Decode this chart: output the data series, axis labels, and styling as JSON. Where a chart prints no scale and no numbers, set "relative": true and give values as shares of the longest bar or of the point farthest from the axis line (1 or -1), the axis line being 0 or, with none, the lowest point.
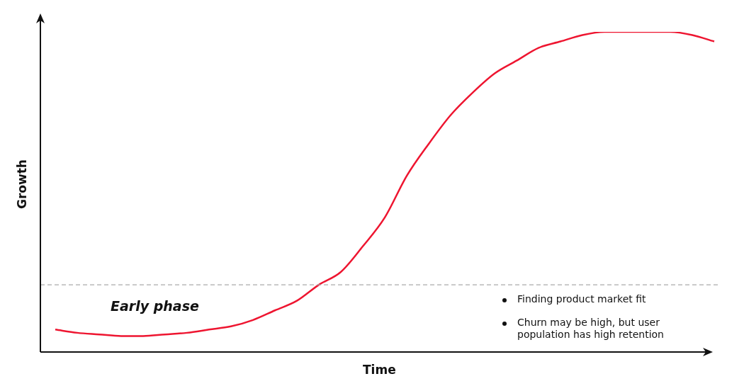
{
  "chart_data": {
    "type": "line",
    "relative": true,
    "xlabel": "Time",
    "ylabel": "Growth",
    "categories": [
      null,
      null,
      null,
      null,
      null,
      null,
      null,
      null,
      null,
      null,
      null,
      null,
      null,
      null,
      null,
      null,
      null,
      null,
      null,
      null,
      null,
      null,
      null,
      null,
      null,
      null,
      null,
      null,
      null,
      null,
      null
    ],
    "series": [
      {
        "color": "#ee1530",
        "values": [
          0.07,
          0.06,
          0.055,
          0.05,
          0.05,
          0.055,
          0.06,
          0.07,
          0.08,
          0.1,
          0.13,
          0.16,
          0.21,
          0.25,
          0.33,
          0.42,
          0.55,
          0.65,
          0.74,
          0.81,
          0.87,
          0.91,
          0.95,
          0.97,
          0.99,
          1.0,
          1.0,
          1.0,
          1.0,
          0.99,
          0.97
        ]
      }
    ],
    "ref_lines": [
      {
        "axis": "y",
        "value": 0.21,
        "color": "#aaaaaa",
        "line_style": "dashed"
      }
    ],
    "annotations": [
      "Early phase",
      "Finding product market fit",
      "Churn may be high, but user population has high retention"
    ],
    "marker": "none",
    "line_style": "solid",
    "legend": false
  }
}
